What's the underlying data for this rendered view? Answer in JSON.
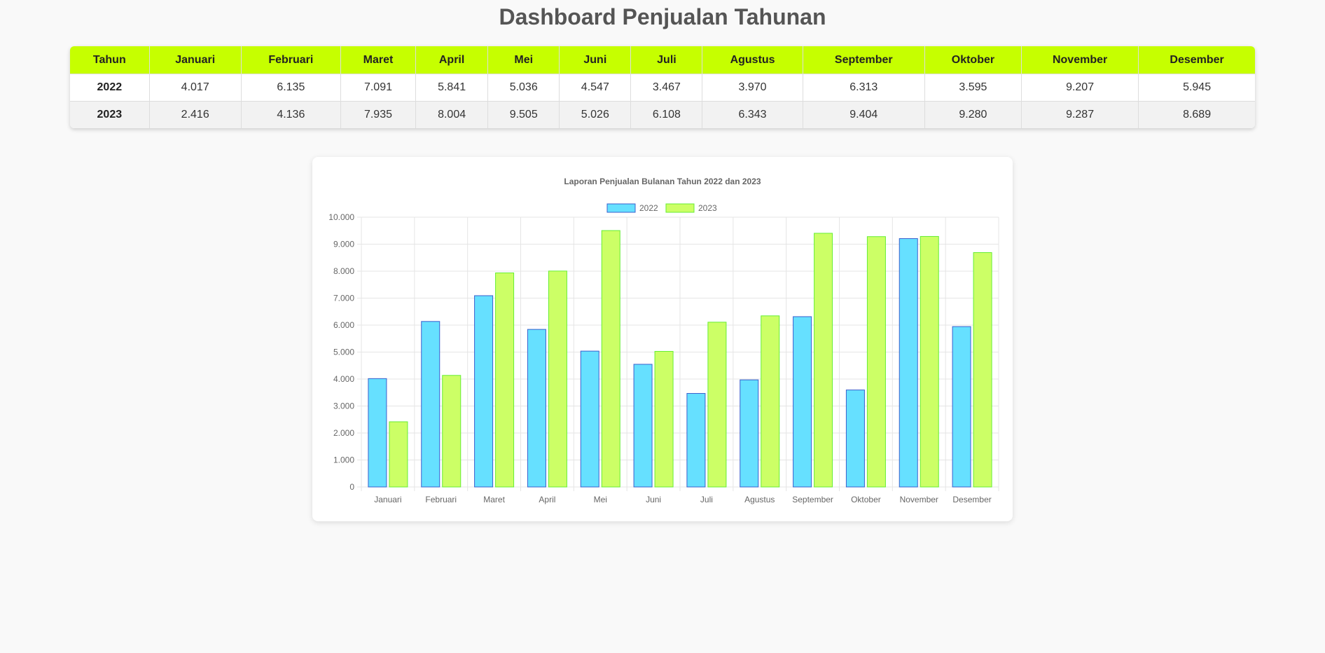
{
  "page": {
    "title": "Dashboard Penjualan Tahunan"
  },
  "table": {
    "headers": [
      "Tahun",
      "Januari",
      "Februari",
      "Maret",
      "April",
      "Mei",
      "Juni",
      "Juli",
      "Agustus",
      "September",
      "Oktober",
      "November",
      "Desember"
    ],
    "rows": [
      [
        "2022",
        "4.017",
        "6.135",
        "7.091",
        "5.841",
        "5.036",
        "4.547",
        "3.467",
        "3.970",
        "6.313",
        "3.595",
        "9.207",
        "5.945"
      ],
      [
        "2023",
        "2.416",
        "4.136",
        "7.935",
        "8.004",
        "9.505",
        "5.026",
        "6.108",
        "6.343",
        "9.404",
        "9.280",
        "9.287",
        "8.689"
      ]
    ]
  },
  "chart_data": {
    "type": "bar",
    "title": "Laporan Penjualan Bulanan Tahun 2022 dan 2023",
    "categories": [
      "Januari",
      "Februari",
      "Maret",
      "April",
      "Mei",
      "Juni",
      "Juli",
      "Agustus",
      "September",
      "Oktober",
      "November",
      "Desember"
    ],
    "series": [
      {
        "name": "2022",
        "values": [
          4017,
          6135,
          7091,
          5841,
          5036,
          4547,
          3467,
          3970,
          6313,
          3595,
          9207,
          5945
        ],
        "fill": "#66e0ff",
        "stroke": "#3a5fcd"
      },
      {
        "name": "2023",
        "values": [
          2416,
          4136,
          7935,
          8004,
          9505,
          5026,
          6108,
          6343,
          9404,
          9280,
          9287,
          8689
        ],
        "fill": "#ccff66",
        "stroke": "#66ee33"
      }
    ],
    "ylim": [
      0,
      10000
    ],
    "yticks": [
      0,
      1000,
      2000,
      3000,
      4000,
      5000,
      6000,
      7000,
      8000,
      9000,
      10000
    ],
    "ytick_labels": [
      "0",
      "1.000",
      "2.000",
      "3.000",
      "4.000",
      "5.000",
      "6.000",
      "7.000",
      "8.000",
      "9.000",
      "10.000"
    ],
    "legend_position": "top",
    "grid": true
  }
}
